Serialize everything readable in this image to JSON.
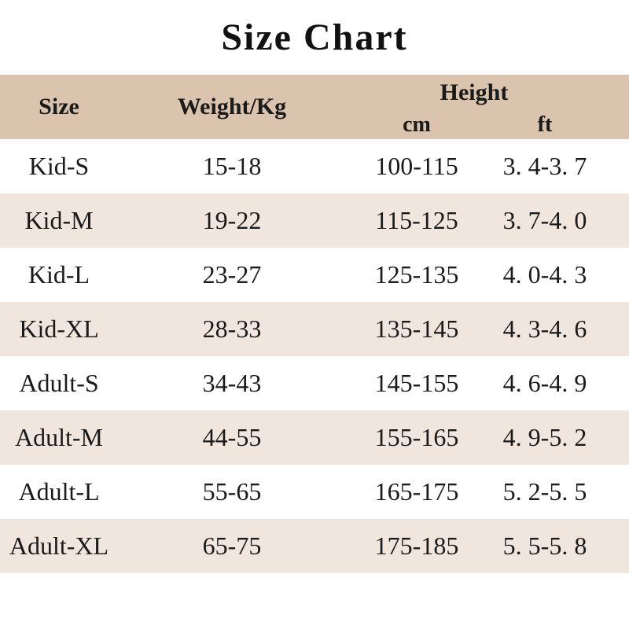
{
  "title": "Size Chart",
  "colors": {
    "header_bg": "#dbc4ae",
    "stripe_bg": "#f0e6de",
    "text": "#1a1a1a",
    "page_bg": "#ffffff"
  },
  "table": {
    "columns": {
      "size": "Size",
      "weight": "Weight/Kg",
      "height": "Height",
      "cm": "cm",
      "ft": "ft"
    },
    "rows": [
      {
        "size": "Kid-S",
        "weight": "15-18",
        "cm": "100-115",
        "ft": "3. 4-3. 7"
      },
      {
        "size": "Kid-M",
        "weight": "19-22",
        "cm": "115-125",
        "ft": "3. 7-4. 0"
      },
      {
        "size": "Kid-L",
        "weight": "23-27",
        "cm": "125-135",
        "ft": "4. 0-4. 3"
      },
      {
        "size": "Kid-XL",
        "weight": "28-33",
        "cm": "135-145",
        "ft": "4. 3-4. 6"
      },
      {
        "size": "Adult-S",
        "weight": "34-43",
        "cm": "145-155",
        "ft": "4. 6-4. 9"
      },
      {
        "size": "Adult-M",
        "weight": "44-55",
        "cm": "155-165",
        "ft": "4. 9-5. 2"
      },
      {
        "size": "Adult-L",
        "weight": "55-65",
        "cm": "165-175",
        "ft": "5. 2-5. 5"
      },
      {
        "size": "Adult-XL",
        "weight": "65-75",
        "cm": "175-185",
        "ft": "5. 5-5. 8"
      }
    ]
  },
  "chart_data": {
    "type": "table",
    "title": "Size Chart",
    "columns": [
      "Size",
      "Weight/Kg",
      "Height cm",
      "Height ft"
    ],
    "rows": [
      [
        "Kid-S",
        "15-18",
        "100-115",
        "3.4-3.7"
      ],
      [
        "Kid-M",
        "19-22",
        "115-125",
        "3.7-4.0"
      ],
      [
        "Kid-L",
        "23-27",
        "125-135",
        "4.0-4.3"
      ],
      [
        "Kid-XL",
        "28-33",
        "135-145",
        "4.3-4.6"
      ],
      [
        "Adult-S",
        "34-43",
        "145-155",
        "4.6-4.9"
      ],
      [
        "Adult-M",
        "44-55",
        "155-165",
        "4.9-5.2"
      ],
      [
        "Adult-L",
        "55-65",
        "165-175",
        "5.2-5.5"
      ],
      [
        "Adult-XL",
        "65-75",
        "175-185",
        "5.5-5.8"
      ]
    ]
  }
}
